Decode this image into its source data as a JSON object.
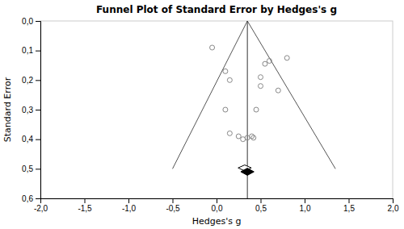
{
  "chart_data": {
    "type": "scatter",
    "title": "Funnel Plot of Standard Error by Hedges's g",
    "xlabel": "Hedges's g",
    "ylabel": "Standard Error",
    "xlim": [
      -2.0,
      2.0
    ],
    "ylim": [
      0.6,
      0.0
    ],
    "xticks": [
      {
        "value": -2.0,
        "label": "-2,0"
      },
      {
        "value": -1.5,
        "label": "-1,5"
      },
      {
        "value": -1.0,
        "label": "-1,0"
      },
      {
        "value": -0.5,
        "label": "-0,5"
      },
      {
        "value": 0.0,
        "label": "0,0"
      },
      {
        "value": 0.5,
        "label": "0,5"
      },
      {
        "value": 1.0,
        "label": "1,0"
      },
      {
        "value": 1.5,
        "label": "1,5"
      },
      {
        "value": 2.0,
        "label": "2,0"
      }
    ],
    "yticks": [
      {
        "value": 0.0,
        "label": "0,0"
      },
      {
        "value": 0.1,
        "label": "0,1"
      },
      {
        "value": 0.2,
        "label": "0,2"
      },
      {
        "value": 0.3,
        "label": "0,3"
      },
      {
        "value": 0.4,
        "label": "0,4"
      },
      {
        "value": 0.5,
        "label": "0,5"
      },
      {
        "value": 0.6,
        "label": "0,6"
      }
    ],
    "grid": false,
    "color": "#888888",
    "marker": "circle",
    "x": [
      -0.05,
      0.1,
      0.15,
      0.1,
      0.15,
      0.25,
      0.3,
      0.35,
      0.4,
      0.42,
      0.45,
      0.5,
      0.5,
      0.55,
      0.6,
      0.7,
      0.8
    ],
    "values": [
      0.09,
      0.17,
      0.2,
      0.3,
      0.38,
      0.39,
      0.4,
      0.395,
      0.39,
      0.395,
      0.3,
      0.19,
      0.22,
      0.145,
      0.135,
      0.235,
      0.125
    ],
    "mean_effect": 0.35,
    "mean_line": {
      "color": "#333333"
    },
    "funnel": {
      "apex_se": 0.0,
      "base_se": 0.5,
      "left_base": -0.5,
      "right_base": 1.35,
      "color": "#555555"
    },
    "diamonds": [
      {
        "x": 0.32,
        "y": 0.497,
        "half_width": 0.075,
        "half_height": 0.01,
        "color": "#ffffff"
      },
      {
        "x": 0.35,
        "y": 0.51,
        "half_width": 0.075,
        "half_height": 0.012,
        "color": "#000000"
      }
    ]
  }
}
